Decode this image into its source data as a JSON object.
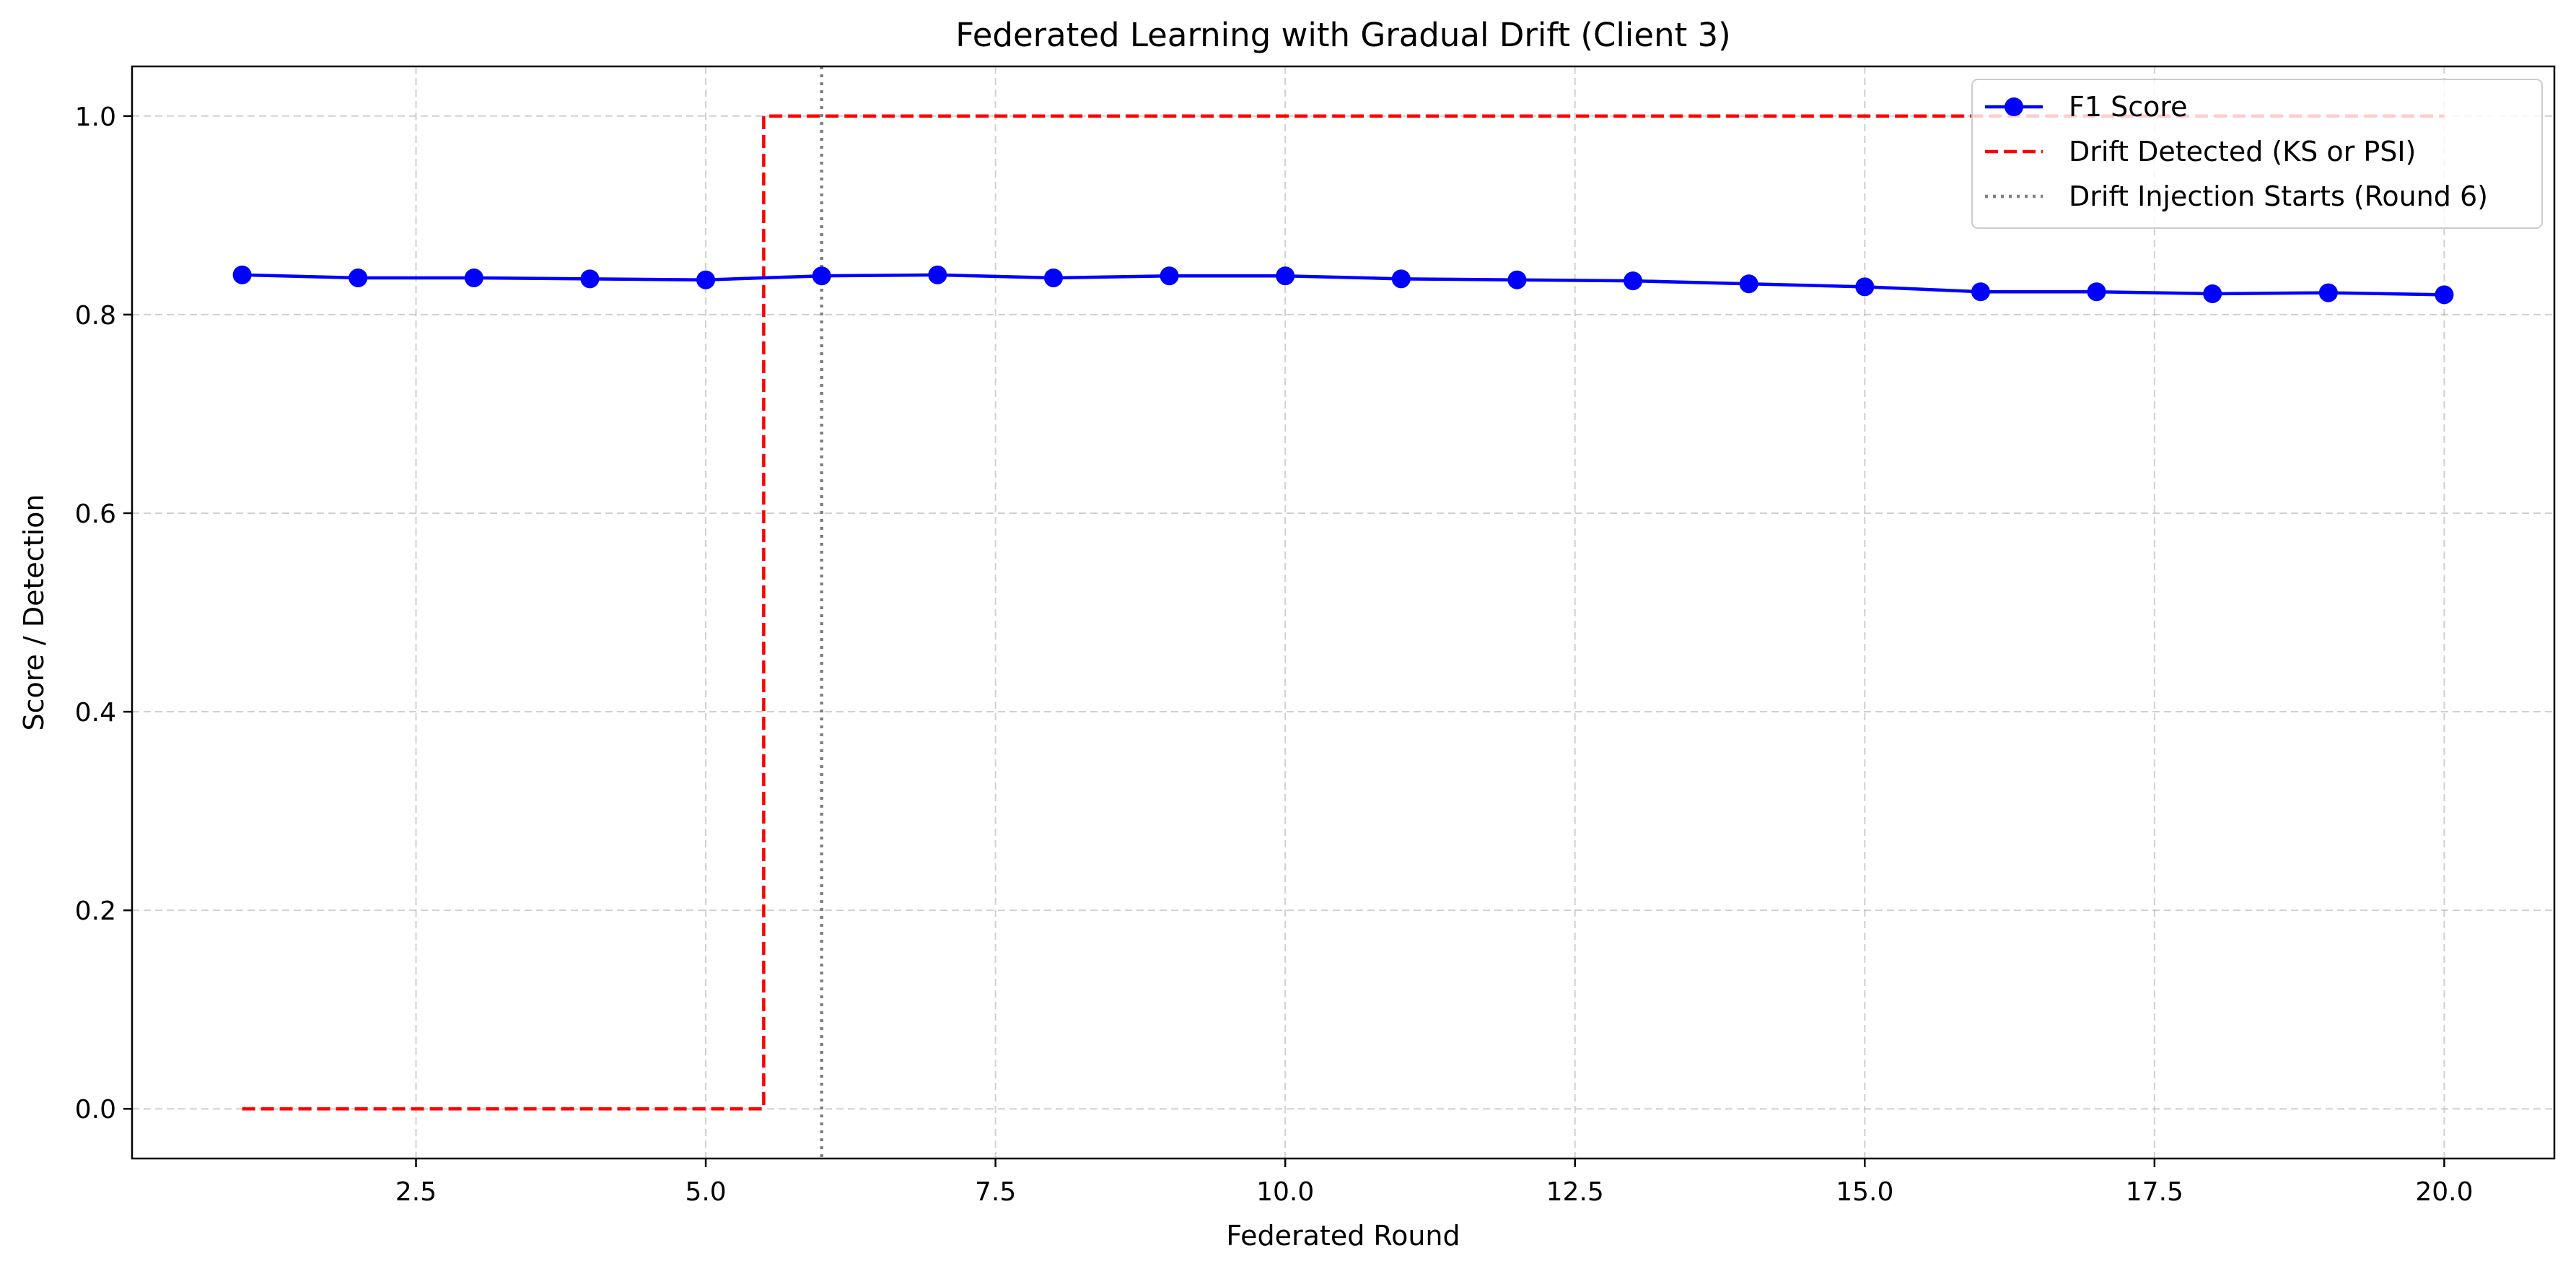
{
  "chart_data": {
    "type": "line",
    "title": "Federated Learning with Gradual Drift (Client 3)",
    "xlabel": "Federated Round",
    "ylabel": "Score / Detection",
    "xlim": [
      0.05,
      20.95
    ],
    "ylim": [
      -0.05,
      1.05
    ],
    "xticks": [
      2.5,
      5.0,
      7.5,
      10.0,
      12.5,
      15.0,
      17.5,
      20.0
    ],
    "xtick_labels": [
      "2.5",
      "5.0",
      "7.5",
      "10.0",
      "12.5",
      "15.0",
      "17.5",
      "20.0"
    ],
    "yticks": [
      0.0,
      0.2,
      0.4,
      0.6,
      0.8,
      1.0
    ],
    "ytick_labels": [
      "0.0",
      "0.2",
      "0.4",
      "0.6",
      "0.8",
      "1.0"
    ],
    "grid": true,
    "legend_position": "top-right",
    "x": [
      1,
      2,
      3,
      4,
      5,
      6,
      7,
      8,
      9,
      10,
      11,
      12,
      13,
      14,
      15,
      16,
      17,
      18,
      19,
      20
    ],
    "series": [
      {
        "name": "F1 Score",
        "style": "solid-marker",
        "color": "#0000ff",
        "values": [
          0.84,
          0.837,
          0.837,
          0.836,
          0.835,
          0.839,
          0.84,
          0.837,
          0.839,
          0.839,
          0.836,
          0.835,
          0.834,
          0.831,
          0.828,
          0.823,
          0.823,
          0.821,
          0.822,
          0.82
        ]
      },
      {
        "name": "Drift Detected (KS or PSI)",
        "style": "dashed-step",
        "color": "#ff0000",
        "values": [
          0,
          0,
          0,
          0,
          0,
          1,
          1,
          1,
          1,
          1,
          1,
          1,
          1,
          1,
          1,
          1,
          1,
          1,
          1,
          1
        ]
      }
    ],
    "vline": {
      "name": "Drift Injection Starts (Round 6)",
      "x": 6,
      "style": "dotted",
      "color": "#808080"
    }
  }
}
